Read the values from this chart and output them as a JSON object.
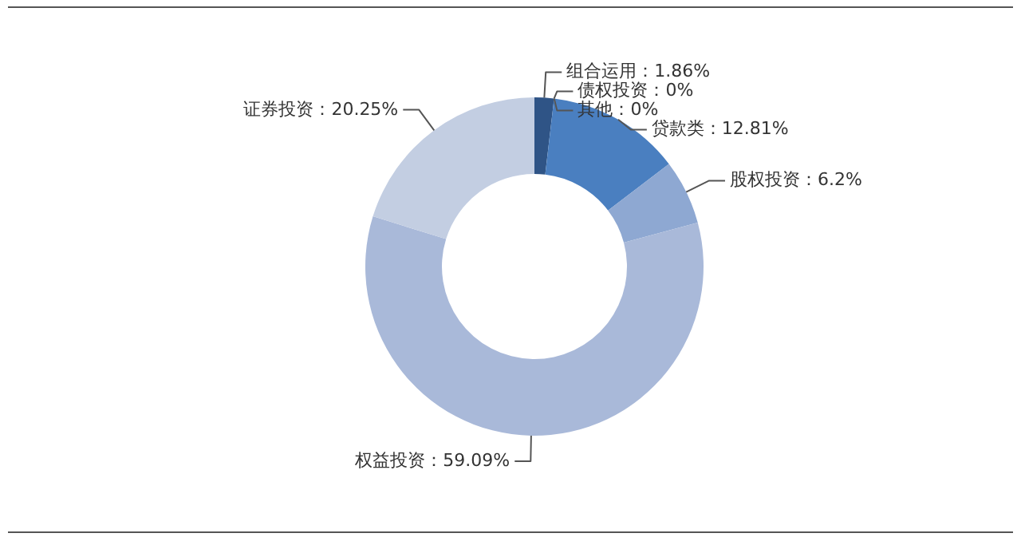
{
  "chart_data": {
    "type": "donut",
    "categories": [
      "组合运用",
      "债权投资",
      "其他",
      "贷款类",
      "股权投资",
      "权益投资",
      "证券投资"
    ],
    "values": [
      1.86,
      0,
      0,
      12.81,
      6.2,
      59.09,
      20.25
    ],
    "colors": [
      "#2f5486",
      "#3d6aa6",
      "#4a76b2",
      "#4a7fc0",
      "#8ea8d2",
      "#a9b9d9",
      "#c3cee2"
    ],
    "value_labels": [
      "1.86%",
      "0%",
      "0%",
      "12.81%",
      "6.2%",
      "59.09%",
      "20.25%"
    ]
  }
}
